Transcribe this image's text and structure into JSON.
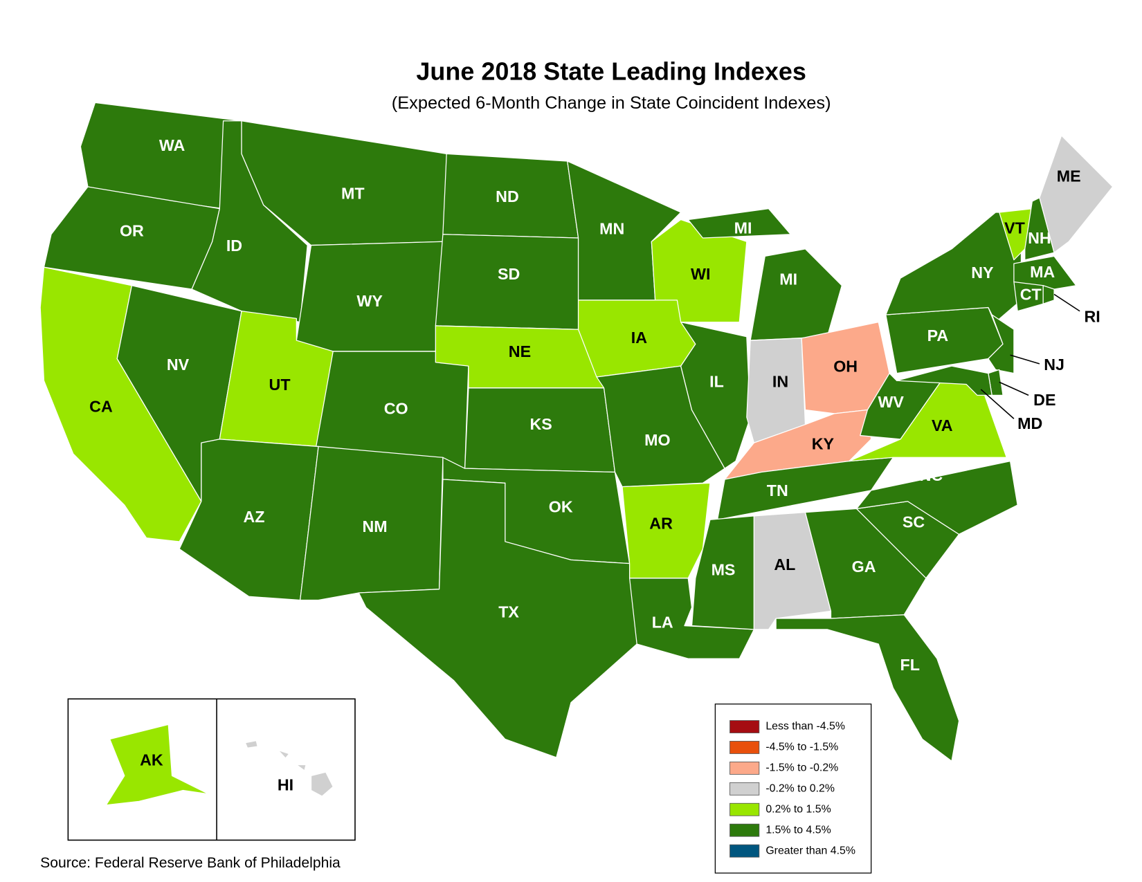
{
  "title": "June 2018 State Leading Indexes",
  "subtitle": "(Expected 6-Month Change in State Coincident Indexes)",
  "source": "Source: Federal Reserve Bank of Philadelphia",
  "legend": [
    {
      "label": "Less than -4.5%",
      "color": "#a50d12"
    },
    {
      "label": "-4.5% to -1.5%",
      "color": "#e8500c"
    },
    {
      "label": "-1.5% to -0.2%",
      "color": "#fca98a"
    },
    {
      "label": "-0.2% to 0.2%",
      "color": "#d0d0d0"
    },
    {
      "label": "0.2% to 1.5%",
      "color": "#99e600"
    },
    {
      "label": "1.5% to 4.5%",
      "color": "#2d7a0c"
    },
    {
      "label": "Greater than 4.5%",
      "color": "#00567f"
    }
  ],
  "states": [
    {
      "label": "WA",
      "range": "1.5% to 4.5%"
    },
    {
      "label": "OR",
      "range": "1.5% to 4.5%"
    },
    {
      "label": "CA",
      "range": "0.2% to 1.5%"
    },
    {
      "label": "NV",
      "range": "1.5% to 4.5%"
    },
    {
      "label": "ID",
      "range": "1.5% to 4.5%"
    },
    {
      "label": "MT",
      "range": "1.5% to 4.5%"
    },
    {
      "label": "WY",
      "range": "1.5% to 4.5%"
    },
    {
      "label": "UT",
      "range": "0.2% to 1.5%"
    },
    {
      "label": "CO",
      "range": "1.5% to 4.5%"
    },
    {
      "label": "AZ",
      "range": "1.5% to 4.5%"
    },
    {
      "label": "NM",
      "range": "1.5% to 4.5%"
    },
    {
      "label": "ND",
      "range": "1.5% to 4.5%"
    },
    {
      "label": "SD",
      "range": "1.5% to 4.5%"
    },
    {
      "label": "NE",
      "range": "0.2% to 1.5%"
    },
    {
      "label": "KS",
      "range": "1.5% to 4.5%"
    },
    {
      "label": "OK",
      "range": "1.5% to 4.5%"
    },
    {
      "label": "TX",
      "range": "1.5% to 4.5%"
    },
    {
      "label": "MN",
      "range": "1.5% to 4.5%"
    },
    {
      "label": "IA",
      "range": "0.2% to 1.5%"
    },
    {
      "label": "MO",
      "range": "1.5% to 4.5%"
    },
    {
      "label": "AR",
      "range": "0.2% to 1.5%"
    },
    {
      "label": "LA",
      "range": "1.5% to 4.5%"
    },
    {
      "label": "WI",
      "range": "0.2% to 1.5%"
    },
    {
      "label": "IL",
      "range": "1.5% to 4.5%"
    },
    {
      "label": "MI",
      "range": "1.5% to 4.5%"
    },
    {
      "label": "MI",
      "range": "1.5% to 4.5%"
    },
    {
      "label": "IN",
      "range": "-0.2% to 0.2%"
    },
    {
      "label": "OH",
      "range": "-1.5% to -0.2%"
    },
    {
      "label": "KY",
      "range": "-1.5% to -0.2%"
    },
    {
      "label": "TN",
      "range": "1.5% to 4.5%"
    },
    {
      "label": "MS",
      "range": "1.5% to 4.5%"
    },
    {
      "label": "AL",
      "range": "-0.2% to 0.2%"
    },
    {
      "label": "GA",
      "range": "1.5% to 4.5%"
    },
    {
      "label": "FL",
      "range": "1.5% to 4.5%"
    },
    {
      "label": "SC",
      "range": "1.5% to 4.5%"
    },
    {
      "label": "NC",
      "range": "1.5% to 4.5%"
    },
    {
      "label": "VA",
      "range": "0.2% to 1.5%"
    },
    {
      "label": "WV",
      "range": "1.5% to 4.5%"
    },
    {
      "label": "PA",
      "range": "1.5% to 4.5%"
    },
    {
      "label": "NY",
      "range": "1.5% to 4.5%"
    },
    {
      "label": "NJ",
      "range": "1.5% to 4.5%"
    },
    {
      "label": "DE",
      "range": "1.5% to 4.5%"
    },
    {
      "label": "MD",
      "range": "1.5% to 4.5%"
    },
    {
      "label": "VT",
      "range": "0.2% to 1.5%"
    },
    {
      "label": "NH",
      "range": "1.5% to 4.5%"
    },
    {
      "label": "ME",
      "range": "-0.2% to 0.2%"
    },
    {
      "label": "MA",
      "range": "1.5% to 4.5%"
    },
    {
      "label": "CT",
      "range": "1.5% to 4.5%"
    },
    {
      "label": "RI",
      "range": "1.5% to 4.5%"
    },
    {
      "label": "AK",
      "range": "0.2% to 1.5%"
    },
    {
      "label": "HI",
      "range": "-0.2% to 0.2%"
    }
  ]
}
